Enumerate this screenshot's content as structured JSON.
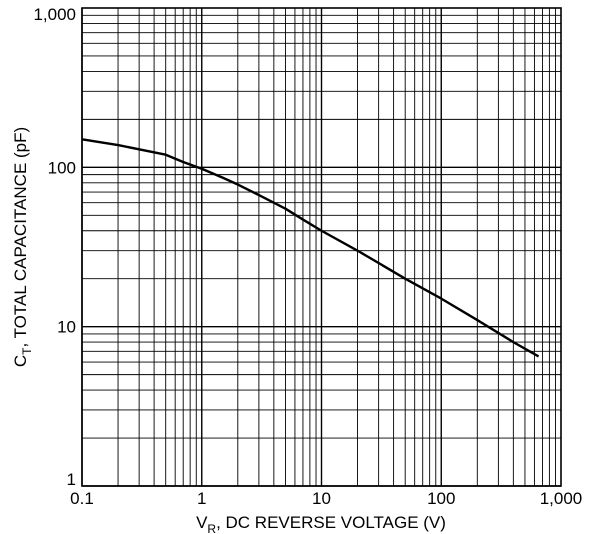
{
  "chart_data": {
    "type": "line",
    "title": "",
    "xscale": "log",
    "yscale": "log",
    "xlim": [
      0.1,
      1000
    ],
    "ylim": [
      1,
      1000
    ],
    "grid": true,
    "xlabel": {
      "main": "V",
      "sub": "R",
      "rest": ", DC REVERSE VOLTAGE (V)"
    },
    "ylabel": {
      "main": "C",
      "sub": "T",
      "rest": ", TOTAL CAPACITANCE (pF)"
    },
    "xtick_labels": [
      "0.1",
      "1",
      "10",
      "100",
      "1,000"
    ],
    "ytick_labels": [
      "1",
      "10",
      "100",
      "1,000"
    ],
    "series": [
      {
        "color": "#000000",
        "x": [
          0.1,
          0.2,
          0.5,
          0.7,
          1,
          1.5,
          2,
          3,
          5,
          7,
          10,
          20,
          50,
          100,
          200,
          400,
          650
        ],
        "y": [
          150,
          138,
          120,
          108,
          98,
          86,
          78,
          67,
          55,
          47,
          40,
          30,
          20,
          15,
          11,
          8,
          6.5
        ]
      }
    ]
  }
}
